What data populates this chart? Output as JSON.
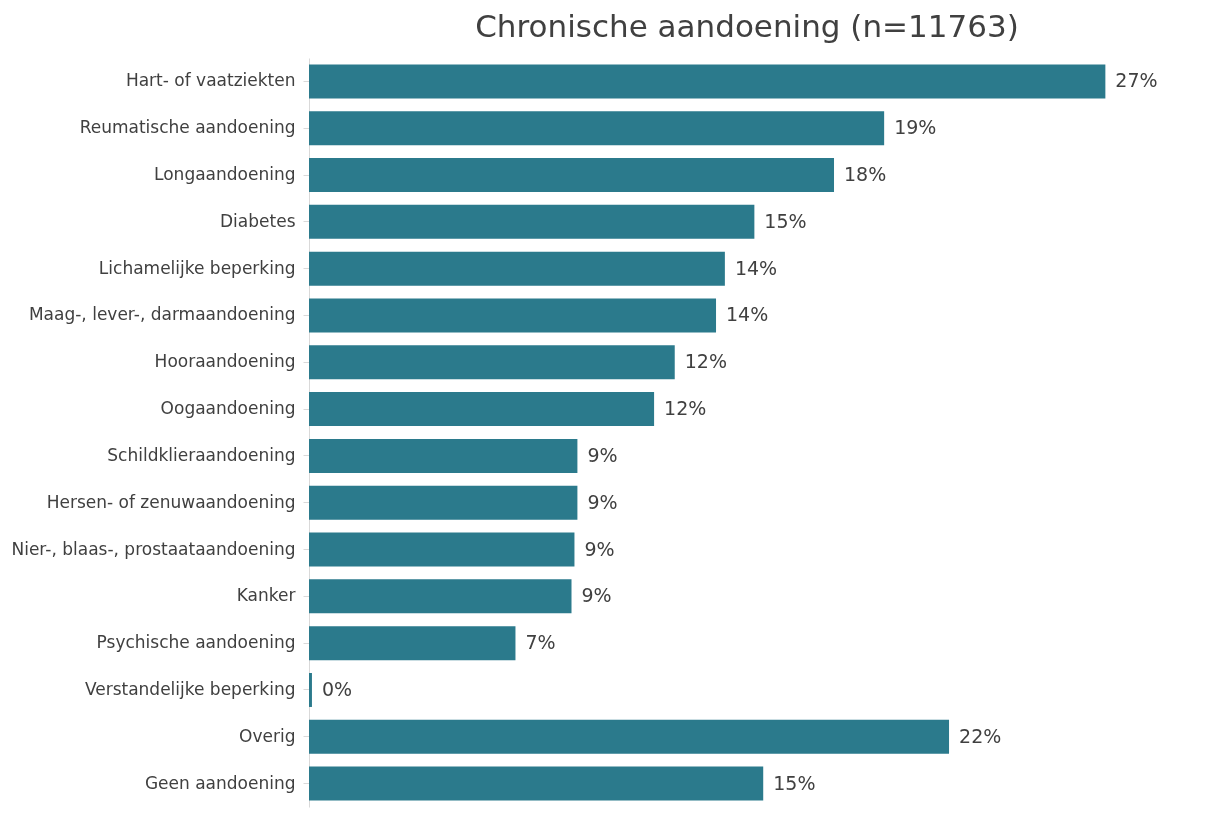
{
  "chart_data": {
    "type": "bar",
    "orientation": "horizontal",
    "title": "Chronische aandoening (n=11763)",
    "categories": [
      "Hart- of vaatziekten",
      "Reumatische aandoening",
      "Longaandoening",
      "Diabetes",
      "Lichamelijke beperking",
      "Maag-, lever-, darmaandoening",
      "Hooraandoening",
      "Oogaandoening",
      "Schildklieraandoening",
      "Hersen- of zenuwaandoening",
      "Nier-, blaas-, prostaataandoening",
      "Kanker",
      "Psychische aandoening",
      "Verstandelijke beperking",
      "Overig",
      "Geen aandoening"
    ],
    "values": [
      27,
      19.5,
      17.8,
      15.1,
      14.1,
      13.8,
      12.4,
      11.7,
      9.1,
      9.1,
      9.0,
      8.9,
      7.0,
      0.1,
      21.7,
      15.4
    ],
    "value_labels": [
      "27%",
      "19%",
      "18%",
      "15%",
      "14%",
      "14%",
      "12%",
      "12%",
      "9%",
      "9%",
      "9%",
      "9%",
      "7%",
      "0%",
      "22%",
      "15%"
    ],
    "color": "#2b7a8c",
    "tick_labels": "y"
  }
}
